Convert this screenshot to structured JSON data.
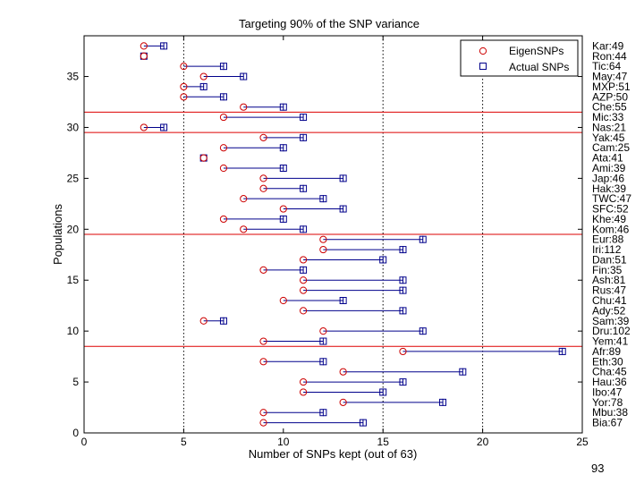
{
  "chart_data": {
    "type": "scatter",
    "title": "Targeting 90% of the SNP variance",
    "xlabel": "Number of SNPs kept (out of 63)",
    "ylabel": "Populations",
    "xlim": [
      0,
      25
    ],
    "ylim": [
      0,
      39
    ],
    "xticks": [
      0,
      5,
      10,
      15,
      20,
      25
    ],
    "yticks": [
      0,
      5,
      10,
      15,
      20,
      25,
      30,
      35
    ],
    "vlines_dotted": [
      5,
      15,
      20
    ],
    "hlines_red": [
      8.5,
      19.5,
      29.5,
      31.5
    ],
    "legend_location": "top-right",
    "series": [
      {
        "name": "EigenSNPs",
        "marker": "circle",
        "color": "#cc0000"
      },
      {
        "name": "Actual SNPs",
        "marker": "square",
        "color": "#00008b"
      }
    ],
    "populations": [
      {
        "label": "Bia:67",
        "eigen": 9,
        "actual": 14
      },
      {
        "label": "Mbu:38",
        "eigen": 9,
        "actual": 12
      },
      {
        "label": "Yor:78",
        "eigen": 13,
        "actual": 18
      },
      {
        "label": "Ibo:47",
        "eigen": 11,
        "actual": 15
      },
      {
        "label": "Hau:36",
        "eigen": 11,
        "actual": 16
      },
      {
        "label": "Cha:45",
        "eigen": 13,
        "actual": 19
      },
      {
        "label": "Eth:30",
        "eigen": 9,
        "actual": 12
      },
      {
        "label": "Afr:89",
        "eigen": 16,
        "actual": 24
      },
      {
        "label": "Yem:41",
        "eigen": 9,
        "actual": 12
      },
      {
        "label": "Dru:102",
        "eigen": 12,
        "actual": 17
      },
      {
        "label": "Sam:39",
        "eigen": 6,
        "actual": 7
      },
      {
        "label": "Ady:52",
        "eigen": 11,
        "actual": 16
      },
      {
        "label": "Chu:41",
        "eigen": 10,
        "actual": 13
      },
      {
        "label": "Rus:47",
        "eigen": 11,
        "actual": 16
      },
      {
        "label": "Ash:81",
        "eigen": 11,
        "actual": 16
      },
      {
        "label": "Fin:35",
        "eigen": 9,
        "actual": 11
      },
      {
        "label": "Dan:51",
        "eigen": 11,
        "actual": 15
      },
      {
        "label": "Iri:112",
        "eigen": 12,
        "actual": 16
      },
      {
        "label": "Eur:88",
        "eigen": 12,
        "actual": 17
      },
      {
        "label": "Kom:46",
        "eigen": 8,
        "actual": 11
      },
      {
        "label": "Khe:49",
        "eigen": 7,
        "actual": 10
      },
      {
        "label": "SFC:52",
        "eigen": 10,
        "actual": 13
      },
      {
        "label": "TWC:47",
        "eigen": 8,
        "actual": 12
      },
      {
        "label": "Hak:39",
        "eigen": 9,
        "actual": 11
      },
      {
        "label": "Jap:46",
        "eigen": 9,
        "actual": 13
      },
      {
        "label": "Ami:39",
        "eigen": 7,
        "actual": 10
      },
      {
        "label": "Ata:41",
        "eigen": 6,
        "actual": 6
      },
      {
        "label": "Cam:25",
        "eigen": 7,
        "actual": 10
      },
      {
        "label": "Yak:45",
        "eigen": 9,
        "actual": 11
      },
      {
        "label": "Nas:21",
        "eigen": 3,
        "actual": 4
      },
      {
        "label": "Mic:33",
        "eigen": 7,
        "actual": 11
      },
      {
        "label": "Che:55",
        "eigen": 8,
        "actual": 10
      },
      {
        "label": "AZP:50",
        "eigen": 5,
        "actual": 7
      },
      {
        "label": "MXP:51",
        "eigen": 5,
        "actual": 6
      },
      {
        "label": "May:47",
        "eigen": 6,
        "actual": 8
      },
      {
        "label": "Tic:64",
        "eigen": 5,
        "actual": 7
      },
      {
        "label": "Ron:44",
        "eigen": 3,
        "actual": 3
      },
      {
        "label": "Kar:49",
        "eigen": 3,
        "actual": 4
      }
    ]
  },
  "page": {
    "number": "93"
  }
}
